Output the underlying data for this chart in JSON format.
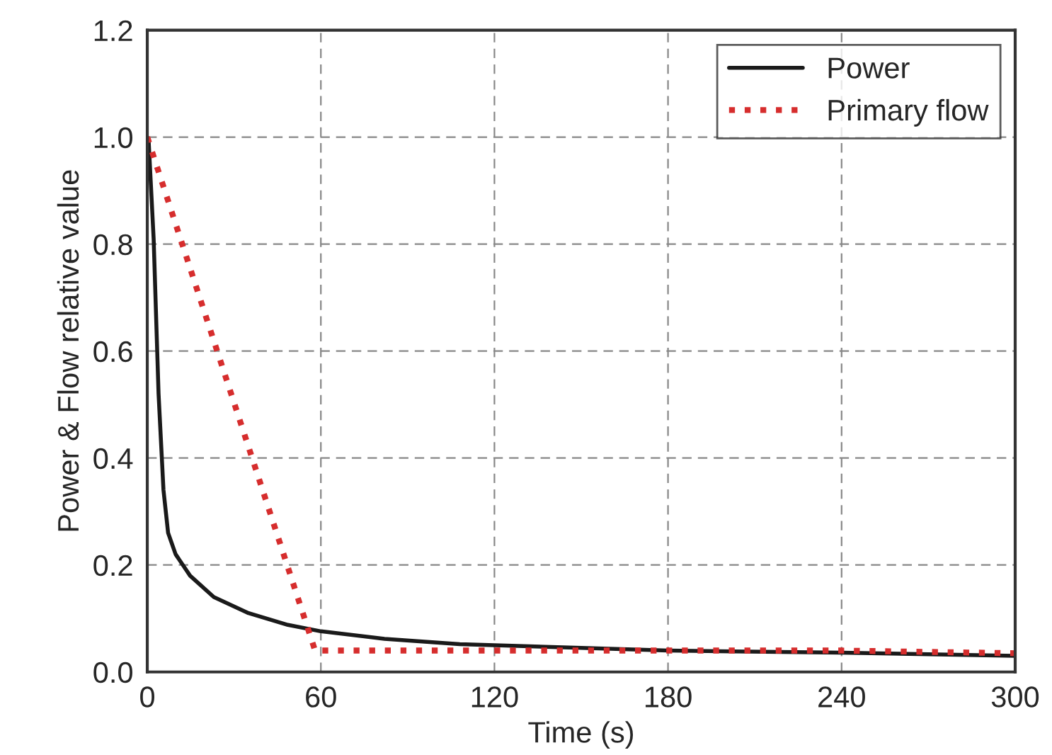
{
  "chart_data": {
    "type": "line",
    "xlabel": "Time (s)",
    "ylabel": "Power & Flow relative value",
    "xlim": [
      0,
      300
    ],
    "xticks": [
      0,
      60,
      120,
      180,
      240,
      300
    ],
    "ylim": [
      0,
      1.2
    ],
    "yticks": [
      {
        "value": 0,
        "label": "0.0"
      },
      0.2,
      0.4,
      0.6,
      0.8,
      {
        "value": 1,
        "label": "1.0"
      },
      1.2
    ],
    "grid": true,
    "legend": "top right",
    "series": [
      {
        "name": "Power",
        "color": "#1a1a1a",
        "line_style": "solid",
        "x": [
          0,
          0.5,
          2.2,
          3.9,
          5.6,
          7.2,
          9.8,
          14.8,
          23,
          35,
          48.6,
          60,
          82,
          108,
          120,
          150,
          180,
          240,
          300
        ],
        "values": [
          1.0,
          0.99,
          0.81,
          0.52,
          0.34,
          0.26,
          0.22,
          0.18,
          0.14,
          0.11,
          0.088,
          0.076,
          0.062,
          0.052,
          0.05,
          0.045,
          0.04,
          0.036,
          0.03
        ]
      },
      {
        "name": "Primary flow",
        "color": "#d62d2d",
        "line_style": "dotted",
        "x": [
          0,
          58,
          120,
          180,
          240,
          300
        ],
        "values": [
          1.0,
          0.04,
          0.04,
          0.04,
          0.04,
          0.035
        ]
      }
    ]
  }
}
